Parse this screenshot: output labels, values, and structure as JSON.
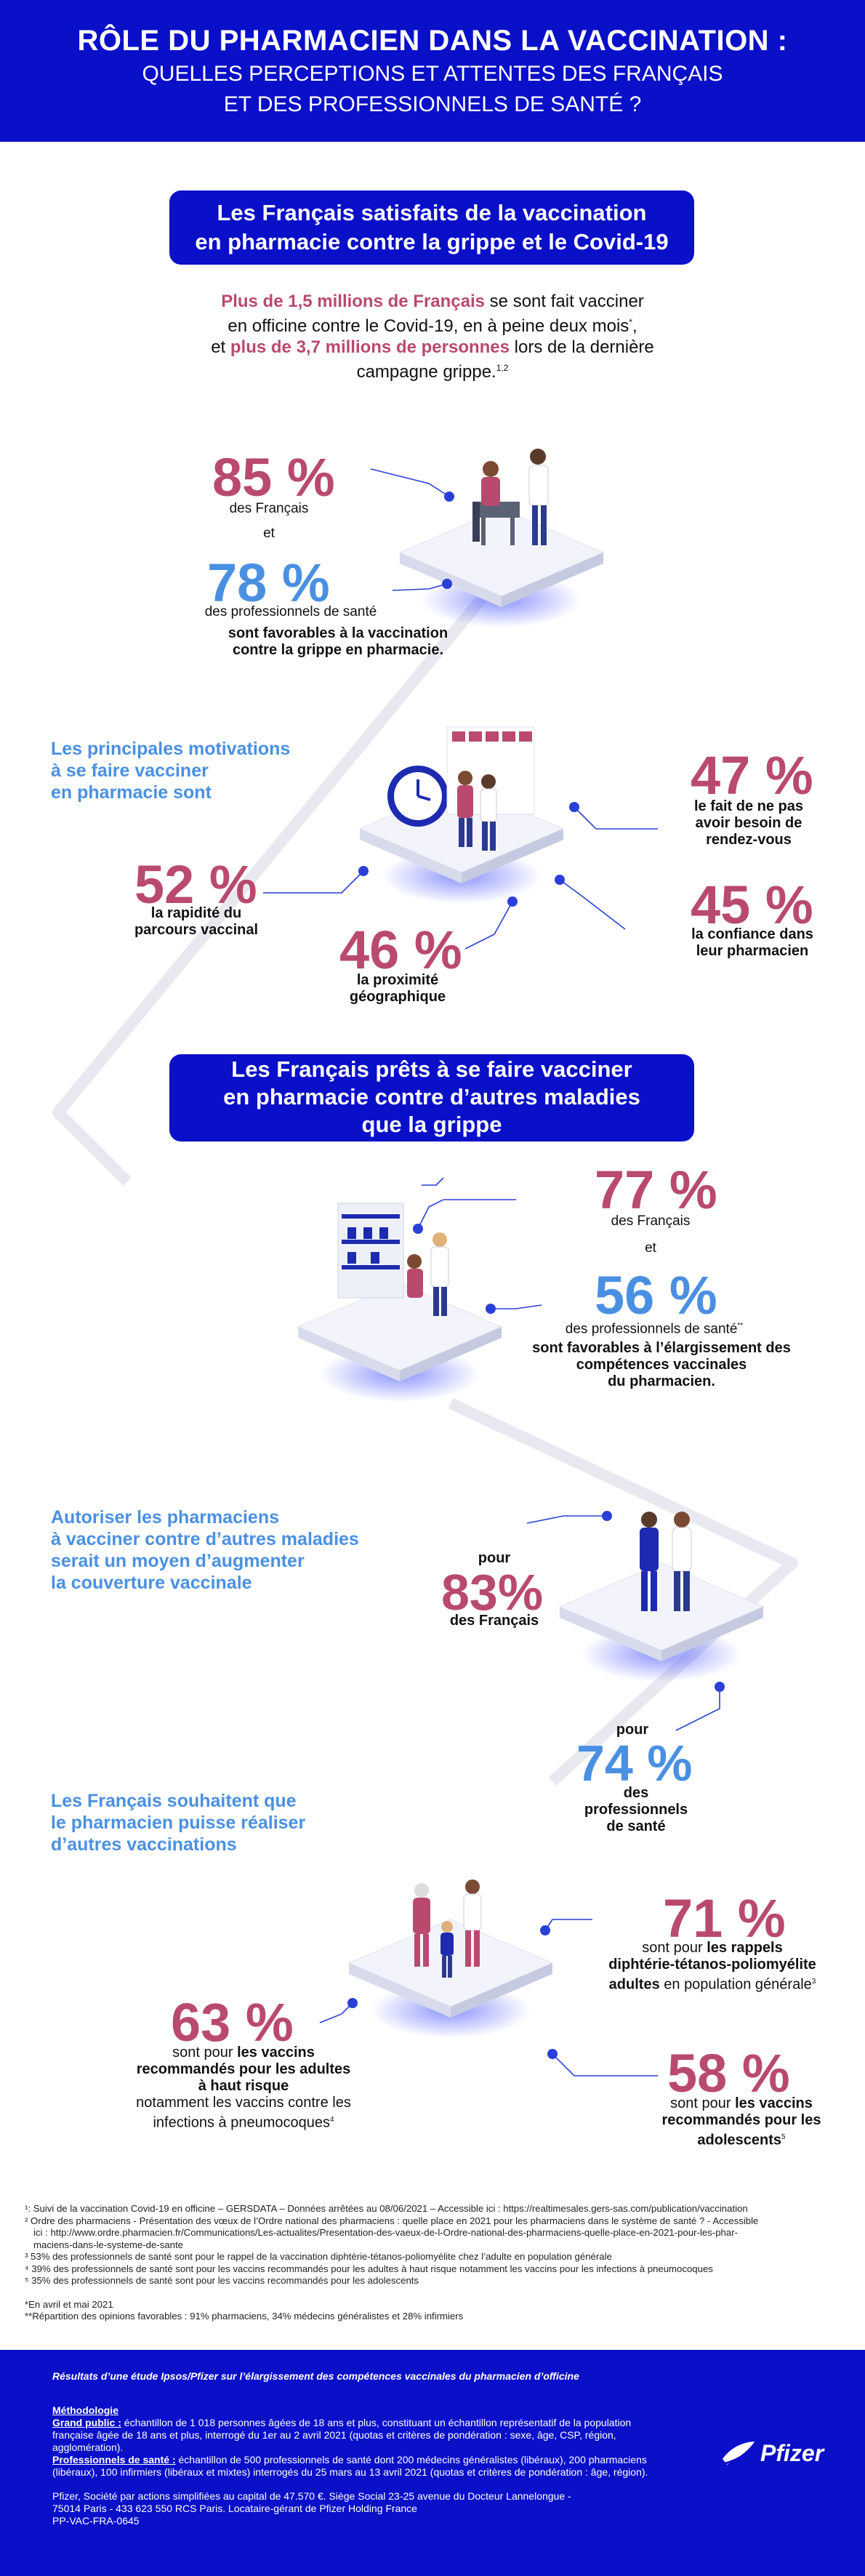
{
  "header": {
    "title": "RÔLE DU PHARMACIEN DANS LA VACCINATION :",
    "subtitle_1": "QUELLES PERCEPTIONS ET ATTENTES DES FRANÇAIS",
    "subtitle_2": "ET DES PROFESSIONNELS DE SANTÉ ?"
  },
  "section1": {
    "pill_1": "Les Français satisfaits de la vaccination",
    "pill_2": "en pharmacie contre la grippe et le Covid-19",
    "intro_a": "Plus de 1,5 millions de Français",
    "intro_b": " se sont fait vacciner",
    "intro_c": "en officine contre le Covid-19, en à peine deux mois",
    "intro_c_sup": "*",
    "intro_d": ",",
    "intro_e": "et ",
    "intro_f": "plus de 3,7 millions de personnes",
    "intro_g": " lors de la dernière",
    "intro_h": "campagne grippe.",
    "intro_h_sup": "1,2"
  },
  "stat85": {
    "value": "85 %",
    "label": "des Français",
    "and": "et"
  },
  "stat78": {
    "value": "78 %",
    "label": "des professionnels de santé",
    "conclusion_1": "sont favorables à la vaccination",
    "conclusion_2": "contre la grippe en pharmacie."
  },
  "motivations": {
    "heading_1": "Les principales motivations",
    "heading_2": "à se faire vacciner",
    "heading_3": "en pharmacie sont",
    "m47": {
      "value": "47 %",
      "l1": "le fait de ne pas",
      "l2": "avoir besoin de",
      "l3": "rendez-vous"
    },
    "m52": {
      "value": "52 %",
      "l1": "la rapidité du",
      "l2": "parcours vaccinal"
    },
    "m46": {
      "value": "46 %",
      "l1": "la proximité",
      "l2": "géographique"
    },
    "m45": {
      "value": "45 %",
      "l1": "la confiance dans",
      "l2": "leur pharmacien"
    }
  },
  "section2": {
    "pill_1": "Les Français prêts à se faire vacciner",
    "pill_2": "en pharmacie contre d’autres maladies",
    "pill_3": "que la grippe"
  },
  "stat77": {
    "value": "77 %",
    "label": "des Français",
    "and": "et"
  },
  "stat56": {
    "value": "56 %",
    "label": "des professionnels de santé",
    "sup": "**",
    "c1": "sont favorables à l’élargissement des",
    "c2": "compétences vaccinales",
    "c3": "du pharmacien."
  },
  "authorize": {
    "h1": "Autoriser les pharmaciens",
    "h2": "à vacciner contre d’autres maladies",
    "h3": "serait un moyen d’augmenter",
    "h4": "la couverture vaccinale",
    "s83": {
      "pre": "pour",
      "value": "83%",
      "label": "des Français"
    },
    "s74": {
      "pre": "pour",
      "value": "74 %",
      "l1": "des",
      "l2": "professionnels",
      "l3": "de santé"
    }
  },
  "others": {
    "h1": "Les Français souhaitent que",
    "h2": "le pharmacien puisse réaliser",
    "h3": "d’autres vaccinations",
    "s71": {
      "value": "71 %",
      "pre": "sont pour ",
      "b1": "les rappels",
      "b2": "diphtérie-tétanos-poliomyélite",
      "b3": "adultes",
      "post": " en population générale",
      "sup": "3"
    },
    "s63": {
      "value": "63 %",
      "pre": "sont pour ",
      "b1": "les vaccins",
      "b2": "recommandés pour les adultes",
      "b3": "à haut risque",
      "n1": "notamment les vaccins contre les",
      "n2": "infections à pneumocoques",
      "sup": "4"
    },
    "s58": {
      "value": "58 %",
      "pre": "sont pour ",
      "b1": "les vaccins",
      "b2": "recommandés pour les",
      "b3": "adolescents",
      "sup": "5"
    }
  },
  "notes": {
    "n1": "¹: Suivi de la vaccination Covid-19 en officine – GERSDATA – Données arrêtées au 08/06/2021 – Accessible ici : https://realtimesales.gers-sas.com/publication/vaccination",
    "n2a": "² Ordre des pharmaciens - Présentation des vœux de l’Ordre national des pharmaciens : quelle place en 2021 pour les pharmaciens dans le système de santé ? - Accessible",
    "n2b": "ici : http://www.ordre.pharmacien.fr/Communications/Les-actualites/Presentation-des-vaeux-de-l-Ordre-national-des-pharmaciens-quelle-place-en-2021-pour-les-phar-",
    "n2c": "maciens-dans-le-systeme-de-sante",
    "n3": "³ 53% des professionnels de santé sont pour le rappel de la vaccination diphtérie-tétanos-poliomyélite chez l’adulte en population générale",
    "n4": "⁴ 39% des professionnels de santé sont pour les vaccins recommandés pour les adultes à haut risque notamment les vaccins pour les infections à pneumocoques",
    "n5": "⁵ 35% des professionnels de santé sont pour les vaccins recommandés pour les adolescents",
    "star1": "*En avril et mai 2021",
    "star2": "**Répartition des opinions favorables : 91% pharmaciens, 34% médecins généralistes et 28% infirmiers"
  },
  "footer": {
    "study": "Résultats d’une étude Ipsos/Pfizer sur l’élargissement des compétences vaccinales du pharmacien d’officine",
    "method": "Méthodologie",
    "gp_label": "Grand public :",
    "gp_text": " échantillon de 1 018 personnes âgées de 18 ans et plus, constituant un échantillon représentatif de la population",
    "gp_text2": "française âgée de 18 ans et plus, interrogé du 1er au 2 avril 2021 (quotas et critères de pondération : sexe, âge, CSP, région,",
    "gp_text3": "agglomération).",
    "ps_label": "Professionnels de santé :",
    "ps_text": " échantillon de 500 professionnels de santé dont 200 médecins généralistes (libéraux), 200 pharmaciens",
    "ps_text2": "(libéraux), 100 infirmiers (libéraux et mixtes) interrogés du 25 mars au 13 avril 2021 (quotas et critères de pondération : âge, région).",
    "company1": "Pfizer, Société par actions simplifiées au capital de 47.570 €. Siège Social 23-25 avenue du Docteur Lannelongue -",
    "company2": "75014 Paris - 433 623 550 RCS Paris. Locataire-gérant de Pfizer Holding France",
    "code": "PP-VAC-FRA-0645",
    "logo": "Pfizer"
  }
}
